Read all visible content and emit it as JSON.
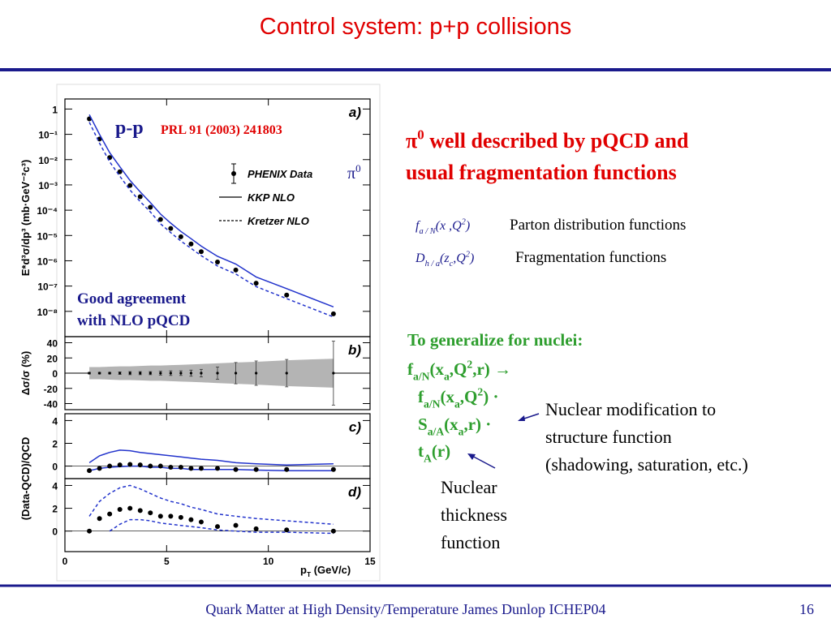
{
  "slide": {
    "title": "Control system: p+p collisions",
    "footer": "Quark Matter at High Density/Temperature James Dunlop ICHEP04",
    "page": "16"
  },
  "headline": [
    "π",
    "0",
    " well described by pQCD and",
    "usual fragmentation functions"
  ],
  "pdf": {
    "formula": [
      "f",
      "a / N",
      "(x ,Q",
      "2",
      ")"
    ],
    "label": "Parton distribution functions"
  },
  "ff": {
    "formula": [
      "D",
      "h / a",
      "(z",
      "c",
      ",Q",
      "2",
      ")"
    ],
    "label": "Fragmentation functions"
  },
  "generalize": {
    "heading": "To generalize for nuclei:",
    "line1": [
      "f",
      "a/N",
      "(x",
      "a",
      ",Q",
      "2",
      ",r) →"
    ],
    "line2": [
      "f",
      "a/N",
      "(x",
      "a",
      ",Q",
      "2",
      ") ·"
    ],
    "line3": [
      "S",
      "a/A",
      "(x",
      "a",
      ",r) ·"
    ],
    "line4": [
      "t",
      "A",
      "(r)"
    ]
  },
  "notes": {
    "modification": [
      "Nuclear modification to",
      "structure function",
      "(shadowing, saturation, etc.)"
    ],
    "thickness": [
      "Nuclear",
      "thickness",
      "function"
    ]
  },
  "chart_data": [
    {
      "type": "line",
      "panel": "a)",
      "log_y": true,
      "ylabel": "E*d³σ/dp³ (mb·GeV⁻²c³)",
      "annotations": {
        "system": "p-p",
        "reference": "PRL 91 (2003) 241803",
        "particle": [
          "π",
          "0"
        ],
        "agreement": [
          "Good agreement",
          "with NLO pQCD"
        ]
      },
      "x": [
        1.2,
        1.7,
        2.2,
        2.7,
        3.2,
        3.7,
        4.2,
        4.7,
        5.2,
        5.7,
        6.2,
        6.7,
        7.5,
        8.4,
        9.4,
        10.9,
        13.2
      ],
      "xlim": [
        0,
        15
      ],
      "ylim": [
        1e-09,
        2.5
      ],
      "yticks": [
        1,
        {
          "value": 0.1,
          "label": "10⁻¹"
        },
        {
          "value": 0.01,
          "label": "10⁻²"
        },
        {
          "value": 0.001,
          "label": "10⁻³"
        },
        {
          "value": 0.0001,
          "label": "10⁻⁴"
        },
        {
          "value": 1e-05,
          "label": "10⁻⁵"
        },
        {
          "value": 1e-06,
          "label": "10⁻⁶"
        },
        {
          "value": 1e-07,
          "label": "10⁻⁷"
        },
        {
          "value": 1e-08,
          "label": "10⁻⁸"
        }
      ],
      "series": [
        {
          "name": "PHENIX Data",
          "style": "markers",
          "color": "#000000",
          "values": [
            0.41,
            0.065,
            0.012,
            0.0033,
            0.00095,
            0.00034,
            0.00013,
            4.3e-05,
            1.9e-05,
            8.9e-06,
            4.6e-06,
            2.3e-06,
            8.9e-07,
            4.3e-07,
            1.3e-07,
            4.4e-08,
            8e-09
          ]
        },
        {
          "name": "KKP NLO",
          "style": "solid",
          "color": "#2233cc",
          "values": [
            0.6,
            0.1,
            0.019,
            0.0052,
            0.0015,
            0.00053,
            0.0002,
            7e-05,
            3.1e-05,
            1.45e-05,
            7.5e-06,
            3.8e-06,
            1.5e-06,
            7.4e-07,
            2.3e-07,
            7.9e-08,
            1.5e-08
          ]
        },
        {
          "name": "Kretzer NLO",
          "style": "dashed",
          "color": "#2233cc",
          "values": [
            0.3,
            0.045,
            0.0082,
            0.0022,
            0.00063,
            0.00022,
            8.5e-05,
            2.9e-05,
            1.3e-05,
            6e-06,
            3.1e-06,
            1.6e-06,
            6.2e-07,
            3e-07,
            9.5e-08,
            3.2e-08,
            6e-09
          ]
        }
      ]
    },
    {
      "type": "line",
      "panel": "b)",
      "ylabel": "Δσ/σ (%)",
      "x": [
        1.2,
        1.7,
        2.2,
        2.7,
        3.2,
        3.7,
        4.2,
        4.7,
        5.2,
        5.7,
        6.2,
        6.7,
        7.5,
        8.4,
        9.4,
        10.9,
        13.2
      ],
      "xlim": [
        0,
        15
      ],
      "ylim": [
        -48,
        48
      ],
      "yticks": [
        40,
        20,
        0,
        -20,
        -40
      ],
      "series": [
        {
          "style": "band",
          "color": "#b4b4b4",
          "values": [
            8,
            8,
            8.5,
            9,
            9,
            9.5,
            10,
            10,
            10.5,
            11,
            11.5,
            12,
            13,
            14,
            15,
            17,
            19
          ]
        },
        {
          "style": "markers",
          "color": "#000000",
          "values": [
            0,
            0,
            0,
            0,
            0,
            0,
            0,
            0,
            0,
            0,
            0,
            0,
            0,
            0,
            0,
            0,
            0
          ],
          "errors": [
            1,
            1,
            1,
            1.5,
            2,
            2,
            2,
            2.5,
            3,
            3,
            4,
            5,
            8,
            14,
            16,
            18,
            42
          ]
        }
      ]
    },
    {
      "type": "line",
      "panel": "c)",
      "ylabel": "(Data-QCD)/QCD",
      "x": [
        1.2,
        1.7,
        2.2,
        2.7,
        3.2,
        3.7,
        4.2,
        4.7,
        5.2,
        5.7,
        6.2,
        6.7,
        7.5,
        8.4,
        9.4,
        10.9,
        13.2
      ],
      "xlim": [
        0,
        15
      ],
      "ylim": [
        -1.1,
        4.6
      ],
      "yticks": [
        0,
        2,
        4
      ],
      "series": [
        {
          "style": "solid",
          "color": "#2233cc",
          "values": [
            0.3,
            0.9,
            1.2,
            1.4,
            1.35,
            1.2,
            1.1,
            1.0,
            0.9,
            0.8,
            0.7,
            0.6,
            0.5,
            0.3,
            0.2,
            0.1,
            0.2
          ]
        },
        {
          "style": "solid",
          "color": "#2233cc",
          "values": [
            -0.4,
            -0.2,
            -0.1,
            -0.05,
            0,
            0,
            -0.1,
            -0.1,
            -0.2,
            -0.2,
            -0.3,
            -0.3,
            -0.3,
            -0.3,
            -0.35,
            -0.4,
            -0.4
          ]
        },
        {
          "style": "markers",
          "color": "#000000",
          "values": [
            -0.4,
            -0.2,
            0,
            0.1,
            0.15,
            0.1,
            0,
            0,
            -0.1,
            -0.1,
            -0.2,
            -0.2,
            -0.2,
            -0.3,
            -0.3,
            -0.3,
            -0.3
          ]
        }
      ]
    },
    {
      "type": "line",
      "panel": "d)",
      "xlabel": [
        "p",
        "T",
        " (GeV/c)"
      ],
      "x": [
        1.2,
        1.7,
        2.2,
        2.7,
        3.2,
        3.7,
        4.2,
        4.7,
        5.2,
        5.7,
        6.2,
        6.7,
        7.5,
        8.4,
        9.4,
        10.9,
        13.2
      ],
      "xlim": [
        0,
        15
      ],
      "ylim": [
        -1.8,
        4.6
      ],
      "xticks": [
        0,
        5,
        10,
        15
      ],
      "yticks": [
        0,
        2,
        4
      ],
      "series": [
        {
          "style": "dashed",
          "color": "#2233cc",
          "values": [
            1.3,
            2.6,
            3.3,
            3.8,
            4.0,
            3.7,
            3.3,
            2.9,
            2.6,
            2.4,
            2.1,
            1.9,
            1.5,
            1.3,
            1.1,
            0.9,
            0.6
          ]
        },
        {
          "style": "dashed",
          "color": "#2233cc",
          "values": [
            null,
            null,
            0,
            0.6,
            1.0,
            1.0,
            0.9,
            0.7,
            0.6,
            0.5,
            0.4,
            0.3,
            0.1,
            0,
            -0.1,
            -0.1,
            -0.2
          ]
        },
        {
          "style": "markers",
          "color": "#000000",
          "values": [
            0,
            1.1,
            1.5,
            1.9,
            2.0,
            1.8,
            1.6,
            1.3,
            1.3,
            1.2,
            1.0,
            0.8,
            0.4,
            0.5,
            0.2,
            0.1,
            0
          ]
        }
      ]
    }
  ]
}
